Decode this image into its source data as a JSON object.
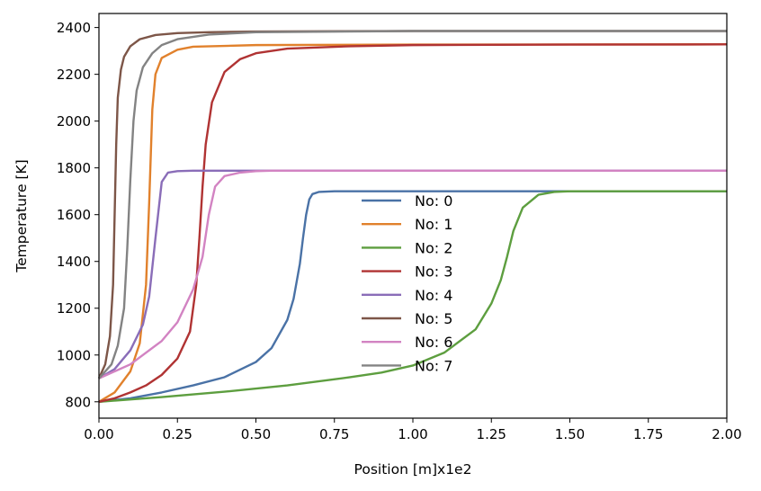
{
  "chart_data": {
    "type": "line",
    "xlabel": "Position [m]x1e2",
    "ylabel": "Temperature [K]",
    "xlim": [
      0,
      2
    ],
    "ylim": [
      730,
      2460
    ],
    "xticks": [
      0,
      0.25,
      0.5,
      0.75,
      1,
      1.25,
      1.5,
      1.75,
      2
    ],
    "xtick_labels": [
      "0.00",
      "0.25",
      "0.50",
      "0.75",
      "1.00",
      "1.25",
      "1.50",
      "1.75",
      "2.00"
    ],
    "yticks": [
      800,
      1000,
      1200,
      1400,
      1600,
      1800,
      2000,
      2200,
      2400
    ],
    "ytick_labels": [
      "800",
      "1000",
      "1200",
      "1400",
      "1600",
      "1800",
      "2000",
      "2200",
      "2400"
    ],
    "grid": false,
    "legend_position": "center-bottom",
    "series": [
      {
        "name": "No: 0",
        "color": "#4a72a6",
        "x": [
          0,
          0.1,
          0.2,
          0.3,
          0.4,
          0.5,
          0.55,
          0.6,
          0.62,
          0.64,
          0.65,
          0.66,
          0.67,
          0.68,
          0.7,
          0.75,
          0.8,
          1,
          1.5,
          2
        ],
        "y": [
          800,
          815,
          840,
          870,
          905,
          970,
          1030,
          1150,
          1240,
          1390,
          1500,
          1600,
          1665,
          1688,
          1697,
          1700,
          1700,
          1700,
          1700,
          1700
        ]
      },
      {
        "name": "No: 1",
        "color": "#e1812c",
        "x": [
          0,
          0.05,
          0.1,
          0.13,
          0.15,
          0.16,
          0.17,
          0.18,
          0.2,
          0.25,
          0.3,
          0.5,
          1,
          2
        ],
        "y": [
          800,
          840,
          930,
          1050,
          1300,
          1650,
          2050,
          2200,
          2270,
          2305,
          2318,
          2325,
          2327,
          2328
        ]
      },
      {
        "name": "No: 2",
        "color": "#5d9e3f",
        "x": [
          0,
          0.2,
          0.4,
          0.6,
          0.8,
          0.9,
          1,
          1.1,
          1.2,
          1.25,
          1.28,
          1.3,
          1.32,
          1.35,
          1.4,
          1.45,
          1.5,
          1.6,
          1.8,
          2
        ],
        "y": [
          800,
          820,
          843,
          870,
          905,
          925,
          955,
          1010,
          1110,
          1220,
          1320,
          1420,
          1530,
          1630,
          1685,
          1697,
          1700,
          1700,
          1700,
          1700
        ]
      },
      {
        "name": "No: 3",
        "color": "#b03333",
        "x": [
          0,
          0.05,
          0.1,
          0.15,
          0.2,
          0.25,
          0.29,
          0.31,
          0.32,
          0.33,
          0.34,
          0.36,
          0.4,
          0.45,
          0.5,
          0.6,
          0.8,
          1,
          1.5,
          2
        ],
        "y": [
          800,
          815,
          840,
          870,
          915,
          985,
          1100,
          1300,
          1500,
          1720,
          1900,
          2080,
          2210,
          2265,
          2290,
          2310,
          2320,
          2325,
          2327,
          2328
        ]
      },
      {
        "name": "No: 4",
        "color": "#8a6db8",
        "x": [
          0,
          0.05,
          0.1,
          0.14,
          0.16,
          0.18,
          0.2,
          0.22,
          0.25,
          0.3,
          0.5,
          1,
          2
        ],
        "y": [
          900,
          940,
          1020,
          1130,
          1250,
          1500,
          1740,
          1780,
          1786,
          1788,
          1788,
          1788,
          1788
        ]
      },
      {
        "name": "No: 5",
        "color": "#7d5648",
        "x": [
          0,
          0.02,
          0.035,
          0.045,
          0.05,
          0.055,
          0.06,
          0.07,
          0.08,
          0.1,
          0.13,
          0.18,
          0.25,
          0.35,
          0.5,
          1,
          2
        ],
        "y": [
          900,
          960,
          1080,
          1300,
          1600,
          1900,
          2100,
          2220,
          2275,
          2320,
          2350,
          2368,
          2376,
          2380,
          2383,
          2385,
          2385
        ]
      },
      {
        "name": "No: 6",
        "color": "#d283c2",
        "x": [
          0,
          0.1,
          0.2,
          0.25,
          0.3,
          0.33,
          0.35,
          0.37,
          0.4,
          0.45,
          0.5,
          0.55,
          1,
          2
        ],
        "y": [
          900,
          960,
          1060,
          1140,
          1280,
          1420,
          1600,
          1720,
          1765,
          1780,
          1786,
          1788,
          1788,
          1788
        ]
      },
      {
        "name": "No: 7",
        "color": "#838383",
        "x": [
          0,
          0.04,
          0.06,
          0.08,
          0.09,
          0.1,
          0.11,
          0.12,
          0.14,
          0.17,
          0.2,
          0.25,
          0.35,
          0.5,
          1,
          2
        ],
        "y": [
          900,
          960,
          1040,
          1200,
          1450,
          1750,
          2000,
          2130,
          2230,
          2290,
          2325,
          2350,
          2370,
          2380,
          2385,
          2385
        ]
      }
    ]
  }
}
